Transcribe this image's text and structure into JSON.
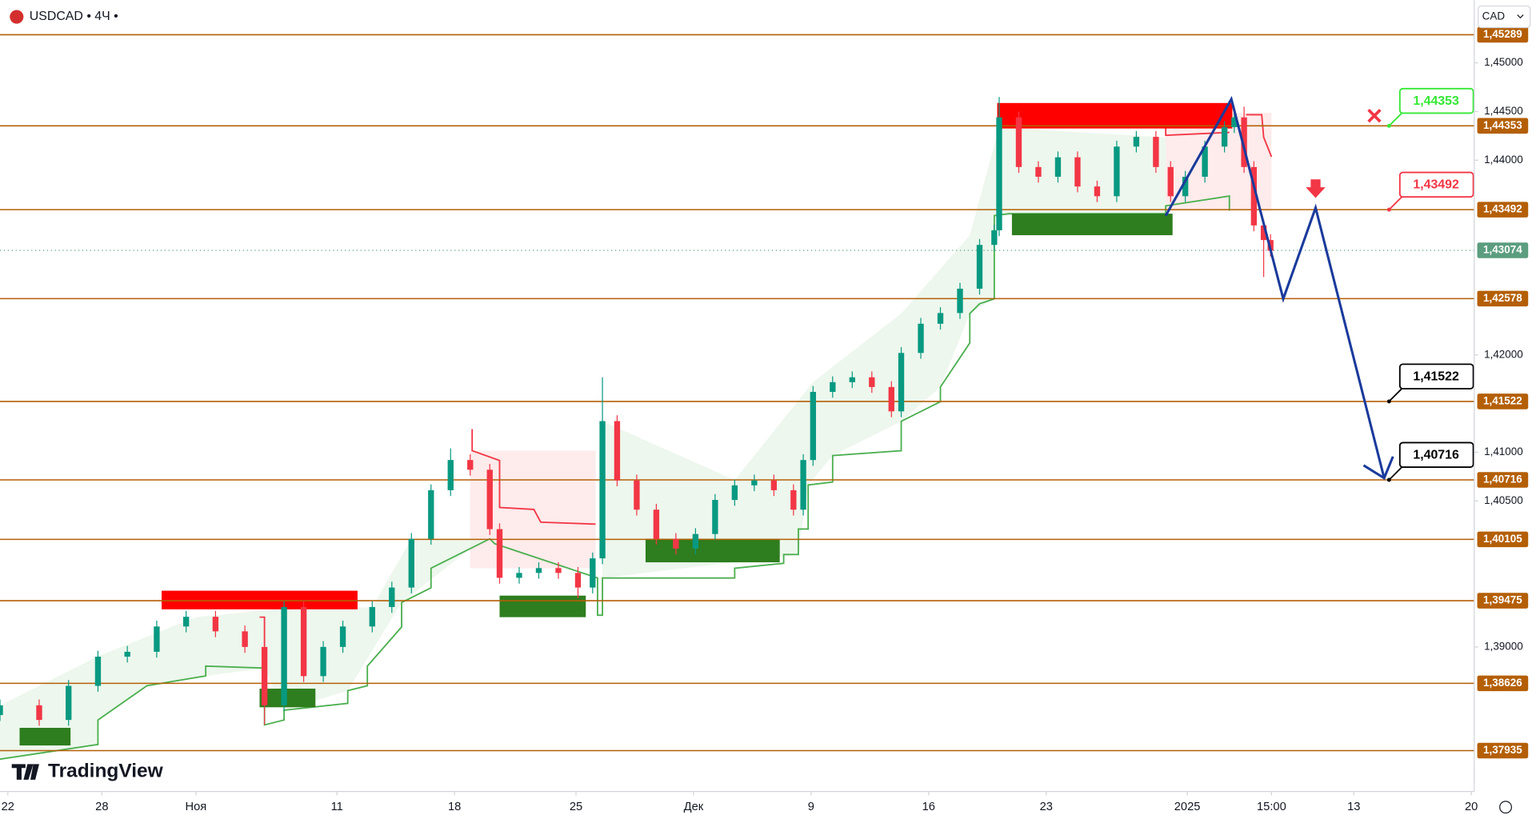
{
  "chart_data": {
    "type": "candlestick",
    "symbol": "USDCAD • 4Ч •",
    "currency": "CAD",
    "watermark": "TradingView",
    "x": [
      0,
      10,
      17.5,
      25,
      32.5,
      40,
      47.5,
      55,
      62.5,
      67.5,
      72.5,
      77.5,
      82.5,
      87.5,
      95,
      100,
      105,
      110,
      115,
      120,
      125,
      127.5,
      132.5,
      137.5,
      142.5,
      147.5,
      151.25,
      153.75,
      157.5,
      162.5,
      167.5,
      172.5,
      177.5,
      182.5,
      187.5,
      192.5,
      197.5,
      202.5,
      205,
      207.5,
      212.5,
      217.5,
      222.5,
      227.5,
      230,
      235,
      240,
      245,
      250,
      253.75,
      255,
      260,
      265,
      270,
      275,
      280,
      285,
      290,
      295,
      298.75,
      302.5,
      307.5,
      312.5,
      315,
      317.5,
      320,
      322.5,
      324.25
    ],
    "open": [
      1.383,
      1.384,
      1.3825,
      1.386,
      1.389,
      1.3895,
      1.3921,
      1.3931,
      1.3916,
      1.39,
      1.384,
      1.3941,
      1.387,
      1.39,
      1.3921,
      1.3941,
      1.3961,
      1.4011,
      1.4061,
      1.4092,
      1.4082,
      1.4021,
      1.3971,
      1.3976,
      1.3981,
      1.3976,
      1.3961,
      1.3991,
      1.4132,
      1.4071,
      1.4041,
      1.4011,
      1.4001,
      1.4016,
      1.4051,
      1.4066,
      1.4071,
      1.4061,
      1.4041,
      1.4092,
      1.4162,
      1.4172,
      1.4177,
      1.4167,
      1.4142,
      1.4202,
      1.4232,
      1.4243,
      1.4268,
      1.4313,
      1.4328,
      1.4444,
      1.4393,
      1.4383,
      1.4403,
      1.4373,
      1.4363,
      1.4414,
      1.4424,
      1.4393,
      1.4363,
      1.4383,
      1.4414,
      1.4434,
      1.4444,
      1.4393,
      1.4333,
      1.4318
    ],
    "high": [
      1.3846,
      1.3846,
      1.3866,
      1.3896,
      1.3901,
      1.3927,
      1.3937,
      1.3937,
      1.3922,
      1.3906,
      1.3947,
      1.3947,
      1.3906,
      1.3927,
      1.3947,
      1.3967,
      1.4017,
      1.4067,
      1.4104,
      1.4098,
      1.4088,
      1.4027,
      1.3982,
      1.3987,
      1.3987,
      1.3982,
      1.3997,
      1.4177,
      1.4138,
      1.4077,
      1.4047,
      1.4017,
      1.4022,
      1.4057,
      1.4072,
      1.4077,
      1.4077,
      1.4067,
      1.4098,
      1.4168,
      1.4178,
      1.4183,
      1.4183,
      1.4173,
      1.4208,
      1.4238,
      1.4249,
      1.4274,
      1.4319,
      1.4334,
      1.4465,
      1.445,
      1.4399,
      1.4409,
      1.4409,
      1.4379,
      1.442,
      1.443,
      1.443,
      1.4399,
      1.4389,
      1.442,
      1.444,
      1.445,
      1.4455,
      1.4399,
      1.4339,
      1.4324
    ],
    "low": [
      1.3824,
      1.3819,
      1.3819,
      1.3854,
      1.3884,
      1.3889,
      1.3915,
      1.391,
      1.3894,
      1.382,
      1.3834,
      1.3864,
      1.3864,
      1.3894,
      1.3915,
      1.3935,
      1.3955,
      1.4005,
      1.4055,
      1.4076,
      1.4015,
      1.3965,
      1.3965,
      1.397,
      1.397,
      1.395,
      1.3955,
      1.3985,
      1.4065,
      1.4035,
      1.4005,
      1.3995,
      1.3995,
      1.401,
      1.4045,
      1.406,
      1.4055,
      1.4035,
      1.4035,
      1.4086,
      1.4156,
      1.4166,
      1.4161,
      1.4136,
      1.4136,
      1.4196,
      1.4226,
      1.4237,
      1.4262,
      1.4307,
      1.4322,
      1.4387,
      1.4377,
      1.4377,
      1.4367,
      1.4357,
      1.4357,
      1.4408,
      1.4387,
      1.4357,
      1.4357,
      1.4377,
      1.4408,
      1.4428,
      1.4387,
      1.4327,
      1.428,
      1.4301
    ],
    "close": [
      1.384,
      1.3825,
      1.386,
      1.389,
      1.3895,
      1.3921,
      1.3931,
      1.3916,
      1.39,
      1.384,
      1.3941,
      1.387,
      1.39,
      1.3921,
      1.3941,
      1.3961,
      1.4011,
      1.4061,
      1.4092,
      1.4082,
      1.4021,
      1.3971,
      1.3976,
      1.3981,
      1.3976,
      1.3961,
      1.3991,
      1.4132,
      1.4071,
      1.4041,
      1.4011,
      1.4001,
      1.4016,
      1.4051,
      1.4066,
      1.4071,
      1.4061,
      1.4041,
      1.4092,
      1.4162,
      1.4172,
      1.4177,
      1.4167,
      1.4142,
      1.4202,
      1.4232,
      1.4243,
      1.4268,
      1.4313,
      1.4328,
      1.4444,
      1.4393,
      1.4383,
      1.4403,
      1.4373,
      1.4363,
      1.4414,
      1.4424,
      1.4393,
      1.4363,
      1.4383,
      1.4414,
      1.4434,
      1.4444,
      1.4393,
      1.4333,
      1.4318,
      1.4307
    ],
    "up_color": "#089981",
    "down_color": "#f23645",
    "xlim": [
      0,
      376
    ],
    "xticks": [
      {
        "value": 2,
        "label": "22"
      },
      {
        "value": 26,
        "label": "28"
      },
      {
        "value": 50,
        "label": "Ноя"
      },
      {
        "value": 86,
        "label": "11"
      },
      {
        "value": 116,
        "label": "18"
      },
      {
        "value": 147,
        "label": "25"
      },
      {
        "value": 177,
        "label": "Дек"
      },
      {
        "value": 207,
        "label": "9"
      },
      {
        "value": 237,
        "label": "16"
      },
      {
        "value": 267,
        "label": "23"
      },
      {
        "value": 303,
        "label": "2025"
      },
      {
        "value": 324.5,
        "label": "15:00"
      },
      {
        "value": 345.5,
        "label": "13"
      },
      {
        "value": 375.5,
        "label": "20"
      }
    ],
    "ylim": [
      1.37515,
      1.45644
    ],
    "yticks": [
      {
        "value": 1.45,
        "label": "1,45000"
      },
      {
        "value": 1.445,
        "label": "1,44500"
      },
      {
        "value": 1.44,
        "label": "1,44000"
      },
      {
        "value": 1.42,
        "label": "1,42000"
      },
      {
        "value": 1.41,
        "label": "1,41000"
      },
      {
        "value": 1.405,
        "label": "1,40500"
      },
      {
        "value": 1.39,
        "label": "1,39000"
      }
    ],
    "level_color": "#b45f06",
    "levels": [
      {
        "value": 1.45289,
        "label": "1,45289"
      },
      {
        "value": 1.44353,
        "label": "1,44353"
      },
      {
        "value": 1.43492,
        "label": "1,43492"
      },
      {
        "value": 1.42578,
        "label": "1,42578"
      },
      {
        "value": 1.41522,
        "label": "1,41522"
      },
      {
        "value": 1.40716,
        "label": "1,40716"
      },
      {
        "value": 1.40105,
        "label": "1,40105"
      },
      {
        "value": 1.39475,
        "label": "1,39475"
      },
      {
        "value": 1.38626,
        "label": "1,38626"
      },
      {
        "value": 1.37935,
        "label": "1,37935"
      }
    ],
    "last_price": {
      "value": 1.43074,
      "label": "1,43074",
      "color": "#5b9d7f"
    },
    "callouts": [
      {
        "value": 1.44353,
        "label": "1,44353",
        "color": "#34e834"
      },
      {
        "value": 1.43492,
        "label": "1,43492",
        "color": "#f23645"
      },
      {
        "value": 1.41522,
        "label": "1,41522",
        "color": "#000000"
      },
      {
        "value": 1.40716,
        "label": "1,40716",
        "color": "#000000"
      }
    ]
  }
}
